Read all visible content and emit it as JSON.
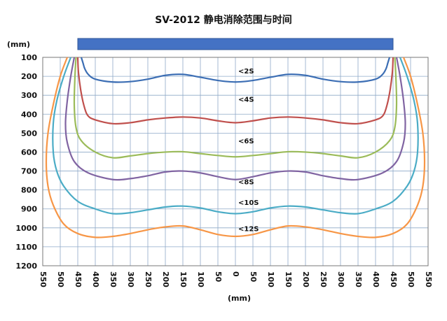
{
  "chart_data": {
    "type": "line",
    "title": "SV-2012 静电消除范围与时间",
    "ylabel": "(mm)",
    "xlabel": "(mm)",
    "xlim": [
      -550,
      550
    ],
    "ylim": [
      100,
      1200
    ],
    "y_inverted": true,
    "grid": true,
    "x_ticks": [
      550,
      500,
      450,
      400,
      350,
      300,
      250,
      200,
      150,
      100,
      50,
      0,
      50,
      100,
      150,
      200,
      250,
      300,
      350,
      400,
      450,
      500,
      550
    ],
    "y_ticks": [
      100,
      200,
      300,
      400,
      500,
      600,
      700,
      800,
      900,
      1000,
      1100,
      1200
    ],
    "bar": {
      "x_range": [
        -450,
        450
      ],
      "color": "#4472C4"
    },
    "series": [
      {
        "name": "<2S",
        "color": "#3C6EB4",
        "label_at": [
          0,
          170
        ],
        "x": [
          -440,
          -435,
          -430,
          -420,
          -400,
          -350,
          -300,
          -250,
          -200,
          -150,
          -100,
          -50,
          0,
          50,
          100,
          150,
          200,
          250,
          300,
          350,
          400,
          420,
          430,
          435,
          440
        ],
        "y": [
          100,
          130,
          160,
          190,
          215,
          230,
          228,
          215,
          195,
          190,
          205,
          222,
          230,
          222,
          205,
          190,
          195,
          215,
          228,
          230,
          215,
          190,
          160,
          130,
          100
        ]
      },
      {
        "name": "<4S",
        "color": "#C0504D",
        "label_at": [
          0,
          320
        ],
        "x": [
          -450,
          -448,
          -440,
          -430,
          -420,
          -400,
          -350,
          -300,
          -250,
          -200,
          -150,
          -100,
          -50,
          0,
          50,
          100,
          150,
          200,
          250,
          300,
          350,
          400,
          420,
          430,
          440,
          448,
          450
        ],
        "y": [
          100,
          180,
          290,
          370,
          410,
          430,
          450,
          445,
          430,
          420,
          415,
          420,
          435,
          445,
          435,
          420,
          415,
          420,
          430,
          445,
          450,
          430,
          410,
          370,
          290,
          180,
          100
        ]
      },
      {
        "name": "<6S",
        "color": "#9BBB59",
        "label_at": [
          0,
          540
        ],
        "x": [
          -455,
          -458,
          -460,
          -455,
          -440,
          -400,
          -350,
          -300,
          -250,
          -200,
          -150,
          -100,
          -50,
          0,
          50,
          100,
          150,
          200,
          250,
          300,
          350,
          400,
          440,
          455,
          460,
          458,
          455
        ],
        "y": [
          100,
          200,
          350,
          470,
          540,
          600,
          630,
          620,
          608,
          600,
          598,
          608,
          618,
          625,
          618,
          608,
          598,
          600,
          608,
          620,
          630,
          600,
          540,
          470,
          350,
          200,
          100
        ]
      },
      {
        "name": "<8S",
        "color": "#8064A2",
        "label_at": [
          0,
          755
        ],
        "x": [
          -460,
          -470,
          -480,
          -485,
          -480,
          -460,
          -420,
          -350,
          -300,
          -250,
          -200,
          -150,
          -100,
          -50,
          0,
          50,
          100,
          150,
          200,
          250,
          300,
          350,
          420,
          460,
          480,
          485,
          480,
          470,
          460
        ],
        "y": [
          100,
          200,
          330,
          450,
          550,
          650,
          710,
          745,
          740,
          725,
          705,
          700,
          710,
          730,
          745,
          730,
          710,
          700,
          705,
          725,
          740,
          745,
          710,
          650,
          550,
          450,
          330,
          200,
          100
        ]
      },
      {
        "name": "<10S",
        "color": "#4BACC6",
        "label_at": [
          0,
          865
        ],
        "x": [
          -470,
          -490,
          -510,
          -520,
          -520,
          -510,
          -490,
          -450,
          -400,
          -350,
          -300,
          -250,
          -200,
          -150,
          -100,
          -50,
          0,
          50,
          100,
          150,
          200,
          250,
          300,
          350,
          400,
          450,
          490,
          510,
          520,
          520,
          510,
          490,
          470
        ],
        "y": [
          100,
          200,
          330,
          450,
          600,
          700,
          780,
          860,
          900,
          925,
          920,
          905,
          890,
          885,
          895,
          915,
          925,
          915,
          895,
          885,
          890,
          905,
          920,
          925,
          900,
          860,
          780,
          700,
          600,
          450,
          330,
          200,
          100
        ]
      },
      {
        "name": "<12S",
        "color": "#F79646",
        "label_at": [
          0,
          1003
        ],
        "x": [
          -480,
          -500,
          -520,
          -535,
          -540,
          -535,
          -520,
          -490,
          -450,
          -400,
          -350,
          -300,
          -250,
          -200,
          -150,
          -100,
          -50,
          0,
          50,
          100,
          150,
          200,
          250,
          300,
          350,
          400,
          450,
          490,
          520,
          535,
          540,
          535,
          520,
          500,
          480
        ],
        "y": [
          100,
          200,
          350,
          500,
          650,
          780,
          880,
          980,
          1030,
          1050,
          1045,
          1030,
          1010,
          995,
          990,
          1010,
          1035,
          1045,
          1035,
          1010,
          990,
          995,
          1010,
          1030,
          1045,
          1050,
          1030,
          980,
          880,
          780,
          650,
          500,
          350,
          200,
          100
        ]
      }
    ]
  }
}
